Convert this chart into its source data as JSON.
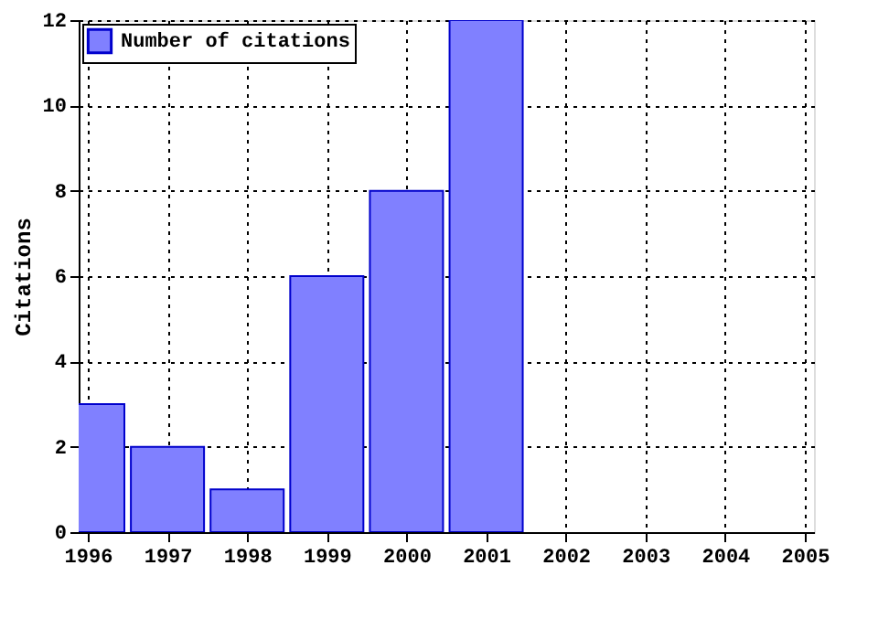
{
  "chart_data": {
    "type": "bar",
    "ylabel": "Citations",
    "x": [
      1996,
      1997,
      1998,
      1999,
      2000,
      2001
    ],
    "series": [
      {
        "name": "Number of citations",
        "color": "#8080ff",
        "values": [
          3,
          2,
          1,
          6,
          8,
          12
        ]
      }
    ],
    "xlim": [
      1996,
      2005
    ],
    "xticks": [
      1996,
      1997,
      1998,
      1999,
      2000,
      2001,
      2002,
      2003,
      2004,
      2005
    ],
    "ylim": [
      0,
      12
    ],
    "yticks": [
      0,
      2,
      4,
      6,
      8,
      10,
      12
    ],
    "grid": true,
    "legend": "top left"
  }
}
